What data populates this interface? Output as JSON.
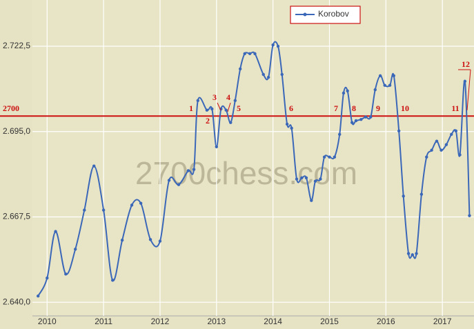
{
  "chart_data": {
    "type": "line",
    "watermark": "2700chess.com",
    "x": [
      2009.84,
      2010.0,
      2010.15,
      2010.33,
      2010.5,
      2010.66,
      2010.83,
      2011.0,
      2011.16,
      2011.33,
      2011.5,
      2011.66,
      2011.83,
      2012.0,
      2012.16,
      2012.33,
      2012.5,
      2012.6,
      2012.67,
      2012.83,
      2012.92,
      2013.0,
      2013.08,
      2013.17,
      2013.25,
      2013.33,
      2013.42,
      2013.5,
      2013.59,
      2013.68,
      2013.83,
      2013.92,
      2014.0,
      2014.09,
      2014.16,
      2014.25,
      2014.33,
      2014.42,
      2014.51,
      2014.59,
      2014.68,
      2014.75,
      2014.84,
      2014.91,
      2015.0,
      2015.09,
      2015.18,
      2015.25,
      2015.32,
      2015.4,
      2015.47,
      2015.56,
      2015.64,
      2015.73,
      2015.81,
      2015.9,
      2015.98,
      2016.07,
      2016.14,
      2016.23,
      2016.31,
      2016.4,
      2016.47,
      2016.54,
      2016.63,
      2016.72,
      2016.81,
      2016.9,
      2016.98,
      2017.07,
      2017.16,
      2017.24,
      2017.31,
      2017.4,
      2017.48
    ],
    "series": [
      {
        "name": "Korobov",
        "color": "#3a67b8",
        "values": [
          2642.0,
          2647.8,
          2662.8,
          2649.1,
          2657.1,
          2669.7,
          2683.9,
          2669.7,
          2647.1,
          2660.0,
          2671.3,
          2671.9,
          2660.2,
          2659.7,
          2679.3,
          2677.9,
          2682.4,
          2682.8,
          2705.0,
          2701.9,
          2702.3,
          2690.1,
          2702.3,
          2701.9,
          2697.9,
          2705.0,
          2715.2,
          2720.1,
          2720.1,
          2720.1,
          2713.4,
          2712.5,
          2722.9,
          2722.5,
          2713.4,
          2697.4,
          2696.1,
          2679.7,
          2680.1,
          2680.1,
          2672.8,
          2679.0,
          2679.7,
          2686.8,
          2686.8,
          2686.8,
          2694.1,
          2707.4,
          2708.1,
          2697.9,
          2698.5,
          2698.9,
          2699.7,
          2699.7,
          2708.5,
          2713.0,
          2709.9,
          2709.9,
          2713.0,
          2695.2,
          2674.2,
          2655.7,
          2655.3,
          2655.7,
          2674.8,
          2686.8,
          2689.0,
          2691.9,
          2689.0,
          2690.8,
          2694.1,
          2695.2,
          2687.5,
          2711.2,
          2667.9
        ]
      }
    ],
    "xlim": [
      2009.74,
      2017.56
    ],
    "xticks": [
      2010,
      2011,
      2012,
      2013,
      2014,
      2015,
      2016,
      2017
    ],
    "ylim": [
      2635.6,
      2737.4
    ],
    "yticks": [
      {
        "value": 2640,
        "label": "2.640,0"
      },
      {
        "value": 2667.5,
        "label": "2.667,5"
      },
      {
        "value": 2695,
        "label": "2.695,0"
      },
      {
        "value": 2722.5,
        "label": "2.722,5"
      }
    ],
    "grid": true,
    "legend": "top",
    "reference_line": {
      "value": 2700,
      "label": "2700",
      "color": "#cc1010"
    },
    "annotations": [
      "1",
      "2",
      "3",
      "4",
      "5",
      "6",
      "7",
      "8",
      "9",
      "10",
      "11",
      "12"
    ]
  }
}
